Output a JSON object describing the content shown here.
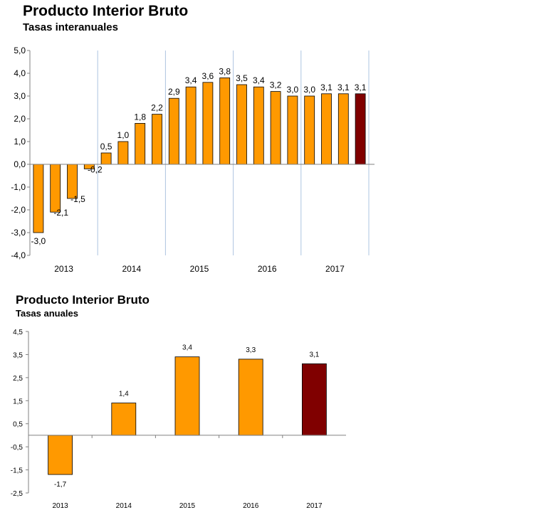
{
  "colors": {
    "bar": "#ff9900",
    "highlight": "#800000",
    "stroke": "#000000",
    "axis": "#808080",
    "grid": "#aec4e0"
  },
  "chart_data": [
    {
      "type": "bar",
      "title": "Producto Interior Bruto",
      "subtitle": "Tasas interanuales",
      "ylim": [
        -4.0,
        5.0
      ],
      "yticks": [
        "5,0",
        "4,0",
        "3,0",
        "2,0",
        "1,0",
        "0,0",
        "-1,0",
        "-2,0",
        "-3,0",
        "-4,0"
      ],
      "ytick_values": [
        5,
        4,
        3,
        2,
        1,
        0,
        -1,
        -2,
        -3,
        -4
      ],
      "groups": [
        "2013",
        "2014",
        "2015",
        "2016",
        "2017"
      ],
      "values": [
        -3.0,
        -2.1,
        -1.5,
        -0.2,
        0.5,
        1.0,
        1.8,
        2.2,
        2.9,
        3.4,
        3.6,
        3.8,
        3.5,
        3.4,
        3.2,
        3.0,
        3.0,
        3.1,
        3.1,
        3.1
      ],
      "value_labels": [
        "-3,0",
        "-2,1",
        "-1,5",
        "-0,2",
        "0,5",
        "1,0",
        "1,8",
        "2,2",
        "2,9",
        "3,4",
        "3,6",
        "3,8",
        "3,5",
        "3,4",
        "3,2",
        "3,0",
        "3,0",
        "3,1",
        "3,1",
        "3,1"
      ],
      "highlight_index": 19
    },
    {
      "type": "bar",
      "title": "Producto Interior Bruto",
      "subtitle": "Tasas anuales",
      "ylim": [
        -2.5,
        4.5
      ],
      "yticks": [
        "4,5",
        "3,5",
        "2,5",
        "1,5",
        "0,5",
        "-0,5",
        "-1,5",
        "-2,5"
      ],
      "ytick_values": [
        4.5,
        3.5,
        2.5,
        1.5,
        0.5,
        -0.5,
        -1.5,
        -2.5
      ],
      "categories": [
        "2013",
        "2014",
        "2015",
        "2016",
        "2017"
      ],
      "values": [
        -1.7,
        1.4,
        3.4,
        3.3,
        3.1
      ],
      "value_labels": [
        "-1,7",
        "1,4",
        "3,4",
        "3,3",
        "3,1"
      ],
      "highlight_index": 4
    }
  ]
}
